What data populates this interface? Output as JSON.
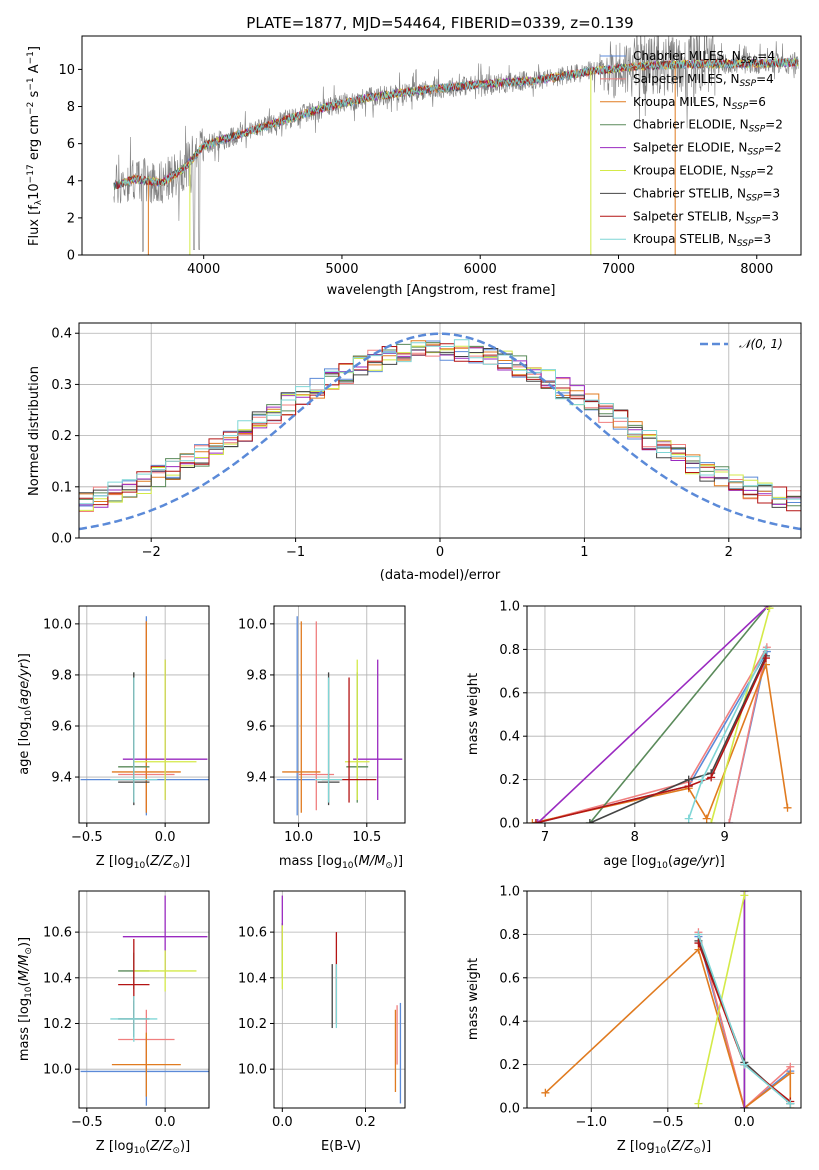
{
  "colors": {
    "Chabrier MILES": "#5b8ad8",
    "Salpeter MILES": "#f07f7f",
    "Kroupa MILES": "#e07b20",
    "Chabrier ELODIE": "#5a8a5a",
    "Salpeter ELODIE": "#9a2ac0",
    "Kroupa ELODIE": "#d4ea48",
    "Chabrier STELIB": "#444444",
    "Salpeter STELIB": "#b41414",
    "Kroupa STELIB": "#7fd6d6",
    "data": "#808080",
    "gauss": "#5b8ad8"
  },
  "chart_data": [
    {
      "id": "spectrum",
      "type": "line",
      "title": "PLATE=1877, MJD=54464, FIBERID=0339, z=0.139",
      "xlabel": "wavelength [Angstrom, rest frame]",
      "ylabel": "Flux [fλ10⁻¹⁷ erg cm⁻² s⁻¹ A⁻¹]",
      "xlim": [
        3120,
        8320
      ],
      "ylim": [
        0,
        11.8
      ],
      "xticks": [
        4000,
        5000,
        6000,
        7000,
        8000
      ],
      "yticks": [
        0,
        2,
        4,
        6,
        8,
        10
      ],
      "grid": false,
      "legend_position": "top-right",
      "legend": [
        {
          "model": "Chabrier MILES",
          "label": "Chabrier MILES, N_SSP=4",
          "nssp": 4
        },
        {
          "model": "Salpeter MILES",
          "label": "Salpeter MILES, N_SSP=4",
          "nssp": 4
        },
        {
          "model": "Kroupa MILES",
          "label": "Kroupa MILES, N_SSP=6",
          "nssp": 6
        },
        {
          "model": "Chabrier ELODIE",
          "label": "Chabrier ELODIE, N_SSP=2",
          "nssp": 2
        },
        {
          "model": "Salpeter ELODIE",
          "label": "Salpeter ELODIE, N_SSP=2",
          "nssp": 2
        },
        {
          "model": "Kroupa ELODIE",
          "label": "Kroupa ELODIE, N_SSP=2",
          "nssp": 2
        },
        {
          "model": "Chabrier STELIB",
          "label": "Chabrier STELIB, N_SSP=3",
          "nssp": 3
        },
        {
          "model": "Salpeter STELIB",
          "label": "Salpeter STELIB, N_SSP=3",
          "nssp": 3
        },
        {
          "model": "Kroupa STELIB",
          "label": "Kroupa STELIB, N_SSP=3",
          "nssp": 3
        }
      ],
      "continuum": [
        [
          3350,
          3.7
        ],
        [
          3500,
          4.1
        ],
        [
          3700,
          3.9
        ],
        [
          3850,
          4.6
        ],
        [
          4000,
          5.9
        ],
        [
          4300,
          6.6
        ],
        [
          4600,
          7.3
        ],
        [
          4900,
          8.0
        ],
        [
          5200,
          8.5
        ],
        [
          5600,
          8.9
        ],
        [
          6000,
          9.2
        ],
        [
          6400,
          9.4
        ],
        [
          6800,
          9.9
        ],
        [
          7200,
          10.2
        ],
        [
          7600,
          10.3
        ],
        [
          8000,
          10.3
        ],
        [
          8300,
          10.4
        ]
      ]
    },
    {
      "id": "residual_hist",
      "type": "histogram",
      "xlabel": "(data-model)/error",
      "ylabel": "Normed distribution",
      "xlim": [
        -2.5,
        2.5
      ],
      "ylim": [
        0,
        0.42
      ],
      "xticks": [
        -2,
        -1,
        0,
        1,
        2
      ],
      "yticks": [
        0.0,
        0.1,
        0.2,
        0.3,
        0.4
      ],
      "grid": true,
      "legend_position": "top-right",
      "legend": [
        "𝒩(0, 1)"
      ],
      "bin_width": 0.1
    },
    {
      "id": "age_vs_Z",
      "type": "scatter",
      "xlabel": "Z [log₁₀(Z/Z⊙)]",
      "ylabel": "age  [log₁₀(age/yr)]",
      "xlim": [
        -0.55,
        0.28
      ],
      "ylim": [
        9.22,
        10.07
      ],
      "xticks": [
        -0.5,
        0.0
      ],
      "yticks": [
        9.4,
        9.6,
        9.8,
        10.0
      ],
      "grid": true,
      "points": [
        {
          "model": "Chabrier MILES",
          "x": -0.12,
          "y": 9.39,
          "xerr": 0.42,
          "yerr": [
            0.14,
            0.64
          ]
        },
        {
          "model": "Salpeter MILES",
          "x": -0.12,
          "y": 9.41,
          "xerr": 0.18,
          "yerr": [
            0.14,
            0.6
          ]
        },
        {
          "model": "Kroupa MILES",
          "x": -0.12,
          "y": 9.42,
          "xerr": 0.22,
          "yerr": [
            0.16,
            0.59
          ]
        },
        {
          "model": "Chabrier ELODIE",
          "x": -0.2,
          "y": 9.44,
          "xerr": 0.1,
          "yerr": [
            0.14,
            0.37
          ]
        },
        {
          "model": "Salpeter ELODIE",
          "x": 0.0,
          "y": 9.47,
          "xerr": 0.27,
          "yerr": [
            0.16,
            0.39
          ]
        },
        {
          "model": "Kroupa ELODIE",
          "x": 0.0,
          "y": 9.46,
          "xerr": 0.2,
          "yerr": [
            0.15,
            0.4
          ]
        },
        {
          "model": "Chabrier STELIB",
          "x": -0.2,
          "y": 9.38,
          "xerr": 0.1,
          "yerr": [
            0.09,
            0.43
          ]
        },
        {
          "model": "Salpeter STELIB",
          "x": -0.2,
          "y": 9.39,
          "xerr": 0.1,
          "yerr": [
            0.09,
            0.4
          ]
        },
        {
          "model": "Kroupa STELIB",
          "x": -0.2,
          "y": 9.39,
          "xerr": 0.15,
          "yerr": [
            0.09,
            0.4
          ]
        }
      ]
    },
    {
      "id": "age_vs_mass",
      "type": "scatter",
      "xlabel": "mass [log₁₀(M/M⊙)]",
      "ylabel": "",
      "xlim": [
        9.82,
        10.78
      ],
      "ylim": [
        9.22,
        10.07
      ],
      "xticks": [
        10.0,
        10.5
      ],
      "yticks": [
        9.4,
        9.6,
        9.8,
        10.0
      ],
      "grid": true,
      "points": [
        {
          "model": "Chabrier MILES",
          "x": 9.99,
          "y": 9.39,
          "xerr": 0.15,
          "yerr": [
            0.14,
            0.64
          ]
        },
        {
          "model": "Salpeter MILES",
          "x": 10.13,
          "y": 9.41,
          "xerr": 0.13,
          "yerr": [
            0.14,
            0.6
          ]
        },
        {
          "model": "Kroupa MILES",
          "x": 10.02,
          "y": 9.42,
          "xerr": 0.14,
          "yerr": [
            0.16,
            0.59
          ]
        },
        {
          "model": "Chabrier ELODIE",
          "x": 10.43,
          "y": 9.44,
          "xerr": 0.08,
          "yerr": [
            0.14,
            0.37
          ]
        },
        {
          "model": "Salpeter ELODIE",
          "x": 10.58,
          "y": 9.47,
          "xerr": 0.18,
          "yerr": [
            0.16,
            0.39
          ]
        },
        {
          "model": "Kroupa ELODIE",
          "x": 10.43,
          "y": 9.46,
          "xerr": 0.09,
          "yerr": [
            0.15,
            0.4
          ]
        },
        {
          "model": "Chabrier STELIB",
          "x": 10.22,
          "y": 9.38,
          "xerr": 0.08,
          "yerr": [
            0.09,
            0.43
          ]
        },
        {
          "model": "Salpeter STELIB",
          "x": 10.37,
          "y": 9.39,
          "xerr": 0.2,
          "yerr": [
            0.09,
            0.4
          ]
        },
        {
          "model": "Kroupa STELIB",
          "x": 10.22,
          "y": 9.39,
          "xerr": 0.1,
          "yerr": [
            0.09,
            0.4
          ]
        }
      ]
    },
    {
      "id": "massweight_vs_age",
      "type": "line",
      "xlabel": "age  [log₁₀(age/yr)]",
      "ylabel": "mass weight",
      "xlim": [
        6.8,
        9.85
      ],
      "ylim": [
        0,
        1.0
      ],
      "xticks": [
        7,
        8,
        9
      ],
      "yticks": [
        0.0,
        0.2,
        0.4,
        0.6,
        0.8,
        1.0
      ],
      "grid": true,
      "series": [
        {
          "model": "Chabrier MILES",
          "points": [
            [
              6.9,
              0.0
            ],
            [
              8.6,
              0.17
            ],
            [
              9.47,
              0.79
            ],
            [
              9.05,
              0.0
            ]
          ]
        },
        {
          "model": "Salpeter MILES",
          "points": [
            [
              6.9,
              0.0
            ],
            [
              8.6,
              0.19
            ],
            [
              9.47,
              0.81
            ],
            [
              9.05,
              0.0
            ]
          ]
        },
        {
          "model": "Kroupa MILES",
          "points": [
            [
              6.86,
              0.0
            ],
            [
              8.6,
              0.16
            ],
            [
              8.8,
              0.02
            ],
            [
              9.46,
              0.73
            ],
            [
              9.7,
              0.07
            ]
          ]
        },
        {
          "model": "Chabrier ELODIE",
          "points": [
            [
              7.5,
              0.0
            ],
            [
              9.48,
              1.0
            ]
          ]
        },
        {
          "model": "Salpeter ELODIE",
          "points": [
            [
              6.92,
              0.0
            ],
            [
              9.48,
              1.0
            ]
          ]
        },
        {
          "model": "Kroupa ELODIE",
          "points": [
            [
              8.85,
              0.0
            ],
            [
              9.5,
              0.99
            ]
          ]
        },
        {
          "model": "Chabrier STELIB",
          "points": [
            [
              7.5,
              0.0
            ],
            [
              8.6,
              0.2
            ],
            [
              8.85,
              0.23
            ],
            [
              9.46,
              0.77
            ]
          ]
        },
        {
          "model": "Salpeter STELIB",
          "points": [
            [
              6.9,
              0.0
            ],
            [
              8.6,
              0.17
            ],
            [
              8.85,
              0.21
            ],
            [
              9.46,
              0.76
            ]
          ]
        },
        {
          "model": "Kroupa STELIB",
          "points": [
            [
              8.6,
              0.02
            ],
            [
              8.75,
              0.2
            ],
            [
              9.46,
              0.8
            ]
          ]
        }
      ]
    },
    {
      "id": "mass_vs_Z",
      "type": "scatter",
      "xlabel": "Z [log₁₀(Z/Z⊙)]",
      "ylabel": "mass [log₁₀(M/M⊙)]",
      "xlim": [
        -0.55,
        0.28
      ],
      "ylim": [
        9.83,
        10.78
      ],
      "xticks": [
        -0.5,
        0.0
      ],
      "yticks": [
        10.0,
        10.2,
        10.4,
        10.6
      ],
      "grid": true,
      "points": [
        {
          "model": "Chabrier MILES",
          "x": -0.12,
          "y": 9.99,
          "xerr": 0.42,
          "yerr": 0.15
        },
        {
          "model": "Salpeter MILES",
          "x": -0.12,
          "y": 10.13,
          "xerr": 0.18,
          "yerr": 0.13
        },
        {
          "model": "Kroupa MILES",
          "x": -0.12,
          "y": 10.02,
          "xerr": 0.22,
          "yerr": 0.14
        },
        {
          "model": "Chabrier ELODIE",
          "x": -0.2,
          "y": 10.43,
          "xerr": 0.1,
          "yerr": 0.08
        },
        {
          "model": "Salpeter ELODIE",
          "x": 0.0,
          "y": 10.58,
          "xerr": 0.27,
          "yerr": 0.18
        },
        {
          "model": "Kroupa ELODIE",
          "x": 0.0,
          "y": 10.43,
          "xerr": 0.2,
          "yerr": 0.09
        },
        {
          "model": "Chabrier STELIB",
          "x": -0.2,
          "y": 10.22,
          "xerr": 0.1,
          "yerr": 0.08
        },
        {
          "model": "Salpeter STELIB",
          "x": -0.2,
          "y": 10.37,
          "xerr": 0.1,
          "yerr": 0.2
        },
        {
          "model": "Kroupa STELIB",
          "x": -0.2,
          "y": 10.22,
          "xerr": 0.15,
          "yerr": 0.1
        }
      ]
    },
    {
      "id": "mass_vs_ebv",
      "type": "scatter",
      "xlabel": "E(B-V)",
      "ylabel": "",
      "xlim": [
        -0.02,
        0.295
      ],
      "ylim": [
        9.83,
        10.78
      ],
      "xticks": [
        0.0,
        0.2
      ],
      "yticks": [
        10.0,
        10.2,
        10.4,
        10.6
      ],
      "grid": true,
      "points": [
        {
          "model": "Chabrier MILES",
          "x": 0.284,
          "y": 10.07,
          "yerr": 0.22
        },
        {
          "model": "Salpeter MILES",
          "x": 0.276,
          "y": 10.15,
          "yerr": 0.13
        },
        {
          "model": "Kroupa MILES",
          "x": 0.272,
          "y": 10.08,
          "yerr": 0.18
        },
        {
          "model": "Chabrier ELODIE",
          "x": 0.0,
          "y": 10.52,
          "yerr": 0.12
        },
        {
          "model": "Salpeter ELODIE",
          "x": 0.0,
          "y": 10.64,
          "yerr": 0.12
        },
        {
          "model": "Kroupa ELODIE",
          "x": 0.0,
          "y": 10.49,
          "yerr": 0.14
        },
        {
          "model": "Chabrier STELIB",
          "x": 0.12,
          "y": 10.32,
          "yerr": 0.14
        },
        {
          "model": "Salpeter STELIB",
          "x": 0.13,
          "y": 10.4,
          "yerr": 0.2
        },
        {
          "model": "Kroupa STELIB",
          "x": 0.13,
          "y": 10.32,
          "yerr": 0.14
        }
      ]
    },
    {
      "id": "massweight_vs_Z",
      "type": "line",
      "xlabel": "Z [log₁₀(Z/Z⊙)]",
      "ylabel": "mass weight",
      "xlim": [
        -1.42,
        0.37
      ],
      "ylim": [
        0,
        1.0
      ],
      "xticks": [
        -1.0,
        -0.5,
        0.0
      ],
      "yticks": [
        0.0,
        0.2,
        0.4,
        0.6,
        0.8,
        1.0
      ],
      "grid": true,
      "series": [
        {
          "model": "Chabrier MILES",
          "points": [
            [
              -0.3,
              0.79
            ],
            [
              0.0,
              0.0
            ],
            [
              0.3,
              0.17
            ]
          ]
        },
        {
          "model": "Salpeter MILES",
          "points": [
            [
              -0.3,
              0.81
            ],
            [
              0.0,
              0.0
            ],
            [
              0.3,
              0.19
            ]
          ]
        },
        {
          "model": "Kroupa MILES",
          "points": [
            [
              -1.3,
              0.07
            ],
            [
              -0.3,
              0.73
            ],
            [
              0.0,
              0.0
            ],
            [
              0.3,
              0.16
            ],
            [
              0.3,
              0.0
            ]
          ]
        },
        {
          "model": "Chabrier ELODIE",
          "points": [
            [
              0.0,
              1.0
            ],
            [
              0.0,
              0.0
            ]
          ]
        },
        {
          "model": "Salpeter ELODIE",
          "points": [
            [
              0.0,
              1.0
            ],
            [
              0.0,
              0.0
            ]
          ]
        },
        {
          "model": "Kroupa ELODIE",
          "points": [
            [
              -0.3,
              0.02
            ],
            [
              0.0,
              0.98
            ]
          ]
        },
        {
          "model": "Chabrier STELIB",
          "points": [
            [
              -0.3,
              0.77
            ],
            [
              0.0,
              0.21
            ],
            [
              0.3,
              0.02
            ]
          ]
        },
        {
          "model": "Salpeter STELIB",
          "points": [
            [
              -0.3,
              0.76
            ],
            [
              0.0,
              0.2
            ],
            [
              0.3,
              0.03
            ]
          ]
        },
        {
          "model": "Kroupa STELIB",
          "points": [
            [
              -0.3,
              0.8
            ],
            [
              0.0,
              0.2
            ],
            [
              0.3,
              0.02
            ]
          ]
        }
      ]
    }
  ]
}
